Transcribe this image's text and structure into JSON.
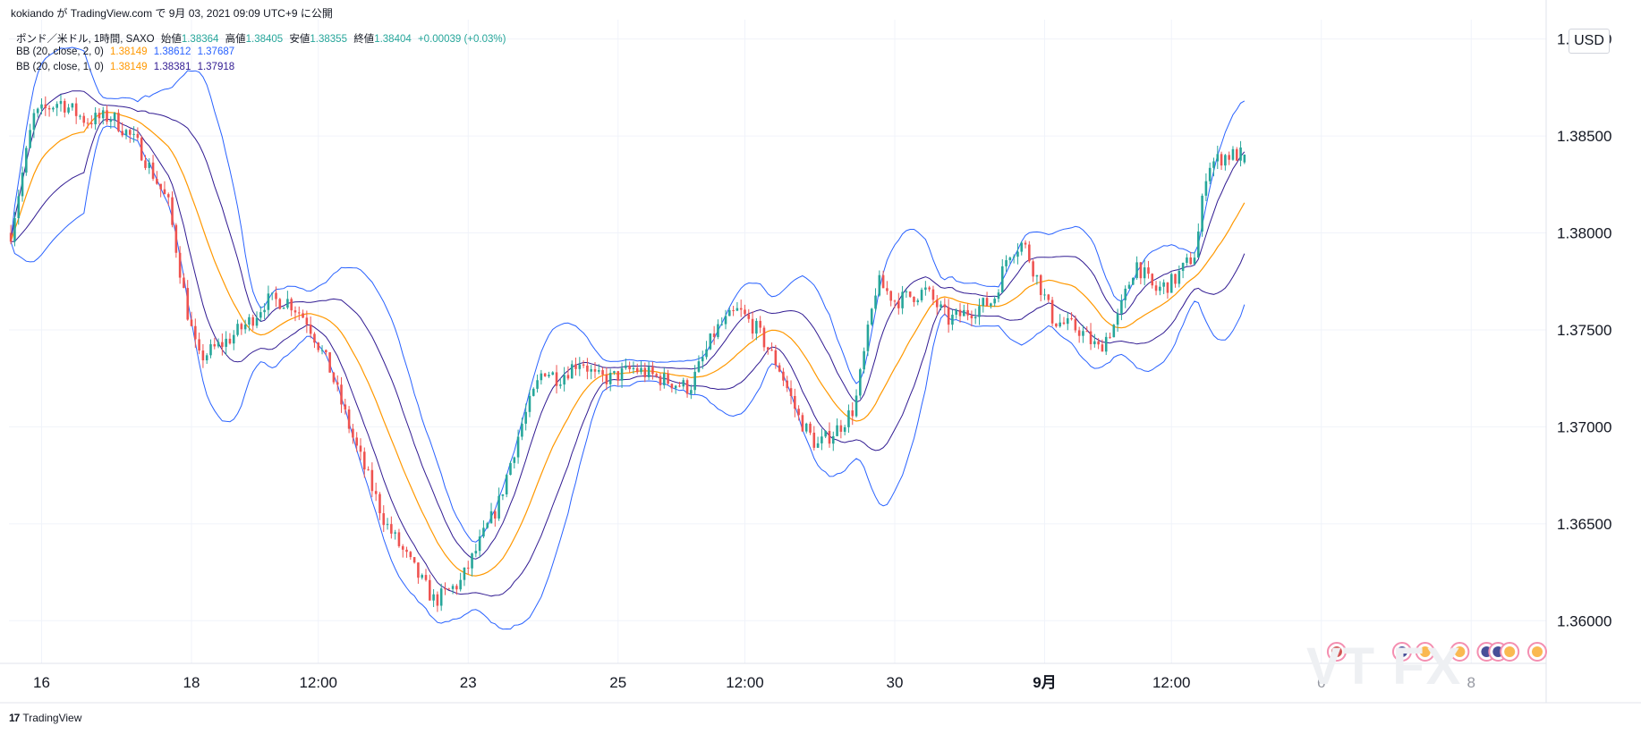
{
  "header": {
    "publisher_line": "kokiando が TradingView.com で 9月 03, 2021 09:09 UTC+9 に公開",
    "symbol": "ポンド／米ドル, 1時間, SAXO",
    "ohlc": [
      {
        "label": "始値",
        "value": "1.38364"
      },
      {
        "label": "高値",
        "value": "1.38405"
      },
      {
        "label": "安値",
        "value": "1.38355"
      },
      {
        "label": "終値",
        "value": "1.38404"
      }
    ],
    "change": "+0.00039 (+0.03%)"
  },
  "indicators": [
    {
      "name": "BB (20, close, 2, 0)",
      "values": [
        "1.38149",
        "1.38612",
        "1.37687"
      ]
    },
    {
      "name": "BB (20, close, 1, 0)",
      "values": [
        "1.38149",
        "1.38381",
        "1.37918"
      ]
    }
  ],
  "currency_button": "USD",
  "brand": "TradingView",
  "brand_logo": "17",
  "watermark": "VT FX",
  "colors": {
    "up": "#26a69a",
    "down": "#ef5350",
    "basis": "#ff9800",
    "bb2": "#2962ff",
    "bb1": "#311b92",
    "grid": "#f0f3fa",
    "price_text": "#131722"
  },
  "chart_data": {
    "type": "candlestick",
    "title": "ポンド／米ドル, 1時間, SAXO",
    "y_axis": {
      "ylim": [
        1.3578,
        1.391
      ],
      "ticks": [
        "1.39000",
        "1.38500",
        "1.38000",
        "1.37500",
        "1.37000",
        "1.36500",
        "1.36000"
      ],
      "tick_values": [
        1.39,
        1.385,
        1.38,
        1.375,
        1.37,
        1.365,
        1.36
      ]
    },
    "x_axis": {
      "labels": [
        "16",
        "18",
        "12:00",
        "23",
        "25",
        "12:00",
        "30",
        "9月",
        "12:00",
        "6",
        "8"
      ],
      "label_index": [
        8,
        47,
        80,
        119,
        158,
        191,
        230,
        269,
        302,
        341,
        380
      ],
      "bold_label": "9月"
    },
    "candle_count": 322,
    "total_slots": 400,
    "close_path_keyframes": [
      [
        0,
        1.38
      ],
      [
        6,
        1.386
      ],
      [
        13,
        1.3868
      ],
      [
        20,
        1.3858
      ],
      [
        27,
        1.386
      ],
      [
        34,
        1.3845
      ],
      [
        42,
        1.3815
      ],
      [
        47,
        1.376
      ],
      [
        50,
        1.3735
      ],
      [
        58,
        1.3745
      ],
      [
        64,
        1.3755
      ],
      [
        68,
        1.3765
      ],
      [
        74,
        1.3765
      ],
      [
        79,
        1.3755
      ],
      [
        85,
        1.373
      ],
      [
        92,
        1.369
      ],
      [
        100,
        1.365
      ],
      [
        108,
        1.3625
      ],
      [
        113,
        1.361
      ],
      [
        120,
        1.362
      ],
      [
        125,
        1.364
      ],
      [
        130,
        1.366
      ],
      [
        136,
        1.37
      ],
      [
        142,
        1.373
      ],
      [
        146,
        1.3725
      ],
      [
        152,
        1.3735
      ],
      [
        156,
        1.3725
      ],
      [
        160,
        1.3725
      ],
      [
        166,
        1.373
      ],
      [
        173,
        1.3725
      ],
      [
        181,
        1.372
      ],
      [
        188,
        1.375
      ],
      [
        194,
        1.376
      ],
      [
        199,
        1.375
      ],
      [
        205,
        1.373
      ],
      [
        210,
        1.3705
      ],
      [
        215,
        1.369
      ],
      [
        221,
        1.37
      ],
      [
        225,
        1.371
      ],
      [
        231,
        1.3775
      ],
      [
        236,
        1.3765
      ],
      [
        244,
        1.377
      ],
      [
        250,
        1.3755
      ],
      [
        256,
        1.376
      ],
      [
        262,
        1.3765
      ],
      [
        266,
        1.379
      ],
      [
        270,
        1.3795
      ],
      [
        274,
        1.3775
      ],
      [
        278,
        1.3755
      ],
      [
        285,
        1.375
      ],
      [
        290,
        1.374
      ],
      [
        295,
        1.3755
      ],
      [
        300,
        1.3785
      ],
      [
        305,
        1.377
      ],
      [
        310,
        1.3775
      ],
      [
        316,
        1.379
      ],
      [
        319,
        1.3835
      ],
      [
        324,
        1.384
      ],
      [
        329,
        1.38404
      ]
    ],
    "bb_settings": [
      {
        "name": "BB (20, close, 2, 0)",
        "length": 20,
        "mult": 2
      },
      {
        "name": "BB (20, close, 1, 0)",
        "length": 20,
        "mult": 1
      }
    ],
    "last_values": {
      "open": 1.38364,
      "high": 1.38405,
      "low": 1.38355,
      "close": 1.38404,
      "basis": 1.38149,
      "bb2_upper": 1.38612,
      "bb2_lower": 1.37687,
      "bb1_upper": 1.38381,
      "bb1_lower": 1.37918
    },
    "event_markers": [
      {
        "slot": 345,
        "icon": "us-flag-icon"
      },
      {
        "slot": 362,
        "icon": "uk-flag-icon"
      },
      {
        "slot": 368,
        "icon": "eu-flag-icon"
      },
      {
        "slot": 377,
        "icon": "eu-flag-icon"
      },
      {
        "slot": 384,
        "icon": "uk-flag-icon"
      },
      {
        "slot": 387,
        "icon": "uk-flag-icon"
      },
      {
        "slot": 390,
        "icon": "eu-flag-icon"
      },
      {
        "slot": 403,
        "icon": "eu-flag-icon"
      }
    ]
  }
}
